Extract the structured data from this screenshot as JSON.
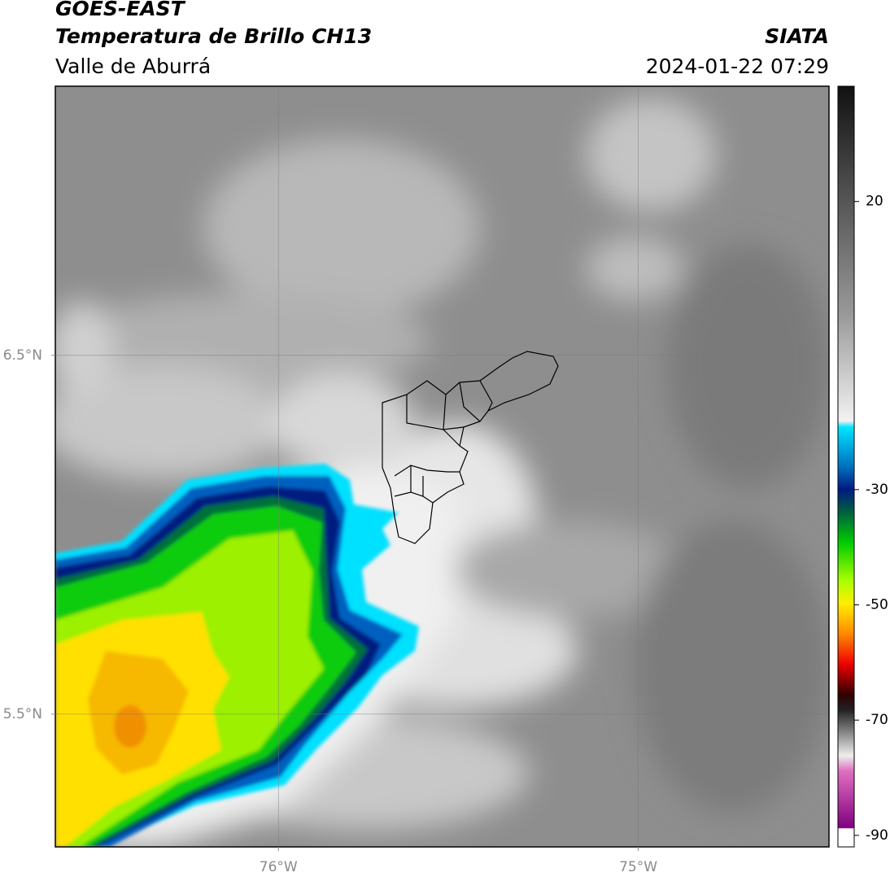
{
  "header": {
    "title": "GOES-EAST",
    "subtitle": "Temperatura de Brillo CH13",
    "region": "Valle de Aburrá",
    "source": "SIATA",
    "datetime": "2024-01-22 07:29"
  },
  "map": {
    "xlim": [
      -76.62,
      -74.47
    ],
    "ylim": [
      5.13,
      7.25
    ],
    "xticks": [
      {
        "value": -76,
        "label": "76°W"
      },
      {
        "value": -75,
        "label": "75°W"
      }
    ],
    "yticks": [
      {
        "value": 5.5,
        "label": "5.5°N"
      },
      {
        "value": 6.5,
        "label": "6.5°N"
      }
    ],
    "grid": true
  },
  "colorbar": {
    "lim": [
      -92,
      40
    ],
    "ticks": [
      20,
      -30,
      -50,
      -70,
      -90
    ]
  }
}
